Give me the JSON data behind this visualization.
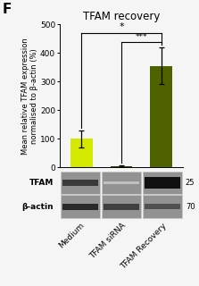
{
  "title": "TFAM recovery",
  "panel_label": "F",
  "categories": [
    "Medium",
    "TFAM siRNA",
    "TFAM Recovery"
  ],
  "values": [
    100,
    5,
    355
  ],
  "errors": [
    30,
    3,
    65
  ],
  "bar_colors": [
    "#d4e800",
    "#3b3b00",
    "#4f6200"
  ],
  "ylabel": "Mean relative TFAM expression\nnormalised to β-actin (%)",
  "ylim": [
    0,
    500
  ],
  "yticks": [
    0,
    100,
    200,
    300,
    400,
    500
  ],
  "background_color": "#f5f5f5",
  "blot_bg": "#a0a0a0",
  "blot_labels": [
    "TFAM",
    "β-actin"
  ],
  "blot_markers": [
    "25",
    "70"
  ],
  "tfam_bands": [
    [
      0,
      "#3a3a3a",
      0.28
    ],
    [
      1,
      "#c0c0c0",
      0.1
    ],
    [
      2,
      "#101010",
      0.45
    ]
  ],
  "actin_bands": [
    [
      0,
      "#2a2a2a",
      0.25
    ],
    [
      1,
      "#404040",
      0.25
    ],
    [
      2,
      "#505050",
      0.22
    ]
  ],
  "title_fontsize": 8.5,
  "ylabel_fontsize": 6.0,
  "tick_fontsize": 6.5,
  "panel_label_fontsize": 11,
  "cat_fontsize": 6.5
}
